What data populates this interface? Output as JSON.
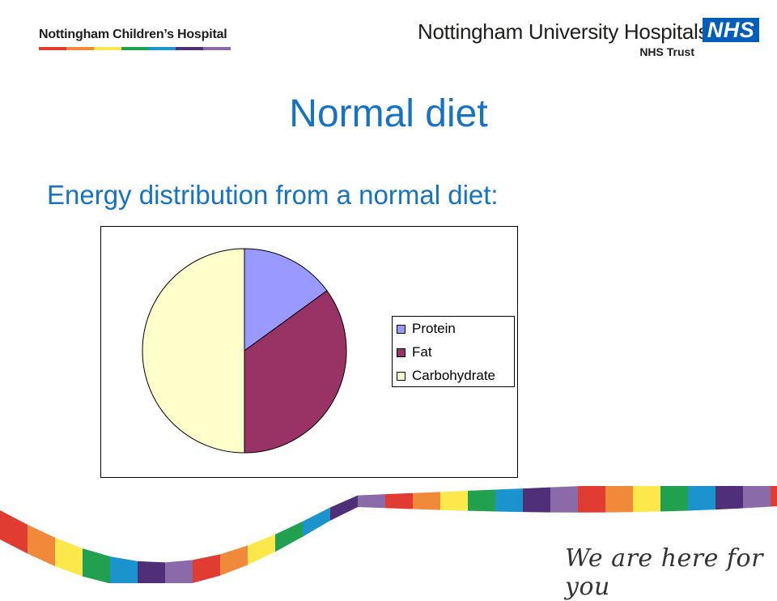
{
  "header": {
    "left_title": "Nottingham Children’s Hospital",
    "right_title": "Nottingham University Hospitals",
    "nhs_logo": "NHS",
    "trust_label": "NHS Trust",
    "stripe_colors": [
      "#e03c31",
      "#f0893a",
      "#fce84a",
      "#21a150",
      "#1b94cd",
      "#4e2f78",
      "#8a6aa8"
    ]
  },
  "slide": {
    "title": "Normal diet",
    "subtitle": "Energy distribution from a normal diet:"
  },
  "chart_data": {
    "type": "pie",
    "categories": [
      "Protein",
      "Fat",
      "Carbohydrate"
    ],
    "values": [
      15,
      35,
      50
    ],
    "colors": [
      "#9999ff",
      "#993366",
      "#ffffcc"
    ],
    "legend_position": "right"
  },
  "footer": {
    "tagline": "We are here for you",
    "wave_colors": [
      "#e03c31",
      "#f0893a",
      "#fce84a",
      "#21a150",
      "#1b94cd",
      "#4e2f78",
      "#8a6aa8"
    ]
  }
}
